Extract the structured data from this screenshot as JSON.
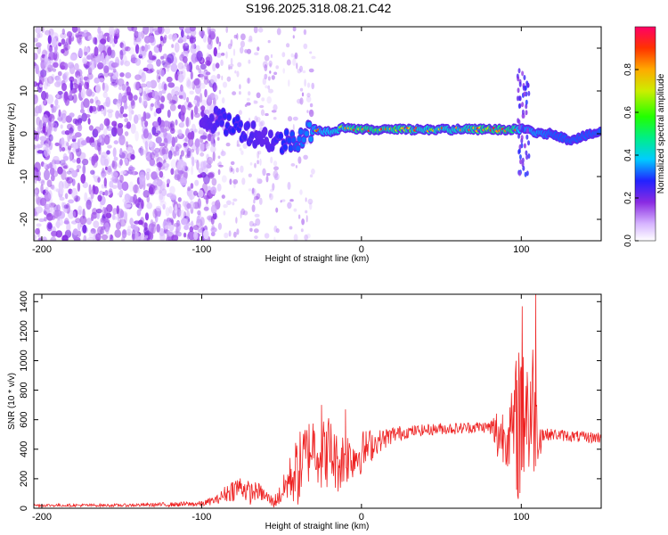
{
  "title": "S196.2025.318.08.21.C42",
  "chart_data": [
    {
      "type": "heatmap",
      "name": "spectrogram",
      "xlabel": "Height of straight line (km)",
      "ylabel": "Frequency (Hz)",
      "xlim": [
        -205,
        150
      ],
      "ylim": [
        -25,
        25
      ],
      "xticks": [
        -200,
        -100,
        0,
        100
      ],
      "yticks": [
        -20,
        -10,
        0,
        10,
        20
      ],
      "colorbar": {
        "label": "Normalized spectral amplitude",
        "range": [
          0,
          1
        ],
        "ticks": [
          "0.0",
          "0.2",
          "0.4",
          "0.6",
          "0.8"
        ],
        "tick_values": [
          0.0,
          0.2,
          0.4,
          0.6,
          0.8
        ]
      },
      "ridge": {
        "description": "dominant frequency track",
        "x": [
          -100,
          -90,
          -80,
          -70,
          -60,
          -50,
          -40,
          -30,
          -20,
          -10,
          0,
          20,
          40,
          60,
          80,
          95,
          100,
          105,
          110,
          120,
          130,
          140,
          150
        ],
        "y": [
          4,
          3,
          2,
          0.5,
          -1,
          -2,
          -1,
          1,
          0.5,
          1.5,
          1,
          1,
          1,
          1,
          1,
          1,
          1,
          1,
          0,
          0,
          -1.5,
          -0.5,
          0.5
        ],
        "amplitude": [
          0.3,
          0.35,
          0.4,
          0.35,
          0.3,
          0.4,
          0.45,
          0.5,
          0.55,
          0.6,
          0.7,
          0.65,
          0.6,
          0.6,
          0.7,
          0.7,
          0.5,
          0.5,
          0.5,
          0.45,
          0.45,
          0.45,
          0.45
        ]
      }
    },
    {
      "type": "line",
      "name": "snr",
      "xlabel": "Height of straight line (km)",
      "ylabel": "SNR (10 * v/v)",
      "xlim": [
        -205,
        150
      ],
      "ylim": [
        0,
        1450
      ],
      "xticks": [
        -200,
        -100,
        0,
        100
      ],
      "yticks": [
        0,
        200,
        400,
        600,
        800,
        1000,
        1200,
        1400
      ],
      "color": "#ee2222",
      "series": [
        {
          "name": "SNR",
          "x": [
            -205,
            -180,
            -150,
            -120,
            -100,
            -90,
            -85,
            -80,
            -75,
            -70,
            -65,
            -60,
            -55,
            -50,
            -45,
            -40,
            -35,
            -30,
            -25,
            -20,
            -15,
            -10,
            -5,
            0,
            5,
            10,
            20,
            30,
            40,
            50,
            60,
            70,
            80,
            85,
            90,
            95,
            98,
            100,
            102,
            105,
            108,
            110,
            115,
            120,
            130,
            140,
            150
          ],
          "y": [
            20,
            20,
            20,
            25,
            30,
            60,
            100,
            130,
            150,
            100,
            120,
            80,
            40,
            100,
            200,
            250,
            350,
            450,
            350,
            400,
            300,
            350,
            350,
            380,
            420,
            450,
            500,
            520,
            530,
            540,
            540,
            550,
            550,
            500,
            500,
            520,
            600,
            700,
            800,
            600,
            700,
            500,
            500,
            500,
            490,
            480,
            480
          ],
          "spread": [
            10,
            10,
            10,
            15,
            20,
            30,
            60,
            80,
            80,
            80,
            60,
            50,
            40,
            80,
            150,
            250,
            250,
            200,
            250,
            250,
            200,
            200,
            150,
            150,
            120,
            80,
            60,
            40,
            40,
            40,
            40,
            40,
            40,
            200,
            200,
            300,
            600,
            700,
            700,
            500,
            500,
            200,
            40,
            40,
            40,
            40,
            40
          ]
        }
      ],
      "peaks": [
        {
          "x": -25,
          "y": 700
        },
        {
          "x": -10,
          "y": 670
        },
        {
          "x": 100,
          "y": 950
        },
        {
          "x": 109,
          "y": 1450
        }
      ]
    }
  ]
}
